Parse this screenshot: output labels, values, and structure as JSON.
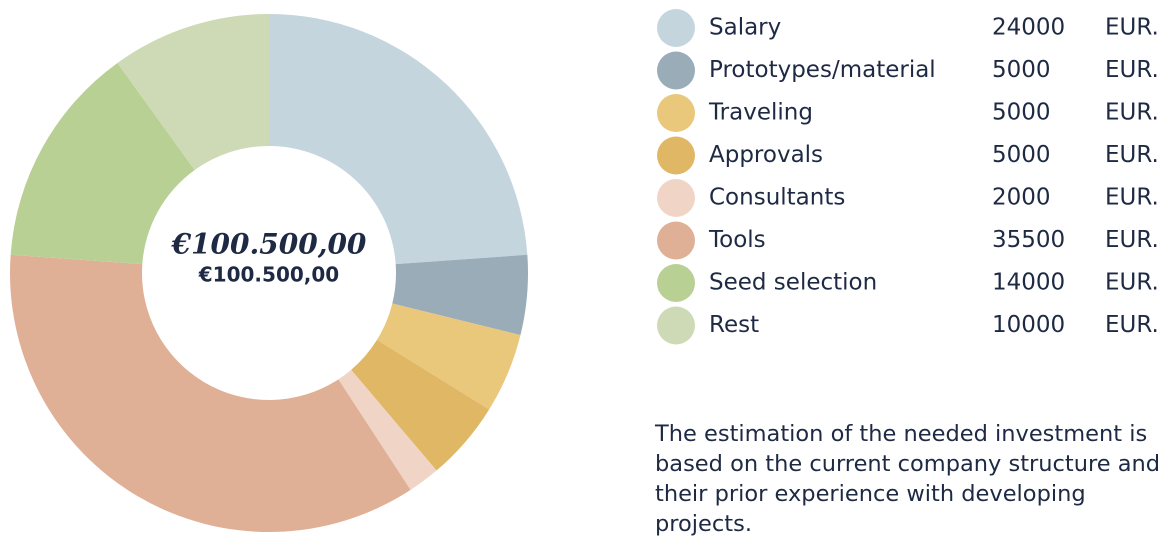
{
  "chart_data": {
    "type": "donut",
    "center_title": "€100.500,00",
    "center_subtitle": "€100.500,00",
    "categories": [
      "Salary",
      "Prototypes/material",
      "Traveling",
      "Approvals",
      "Consultants",
      "Tools",
      "Seed selection",
      "Rest"
    ],
    "values": [
      24000,
      5000,
      5000,
      5000,
      2000,
      35500,
      14000,
      10000
    ],
    "colors": [
      "#c5d5de",
      "#9aacb8",
      "#e9c77b",
      "#e0b865",
      "#f0d5c6",
      "#e0b096",
      "#b9d095",
      "#cddab5"
    ],
    "unit": "EUR.",
    "note": "The estimation of the needed investment is based on the current company structure and their prior experience with developing projects."
  }
}
